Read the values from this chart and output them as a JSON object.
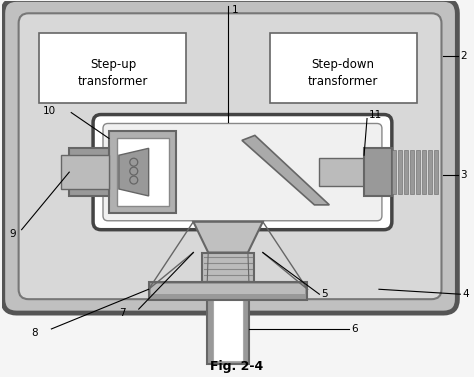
{
  "fig_bg": "#f5f5f5",
  "outer_face": "#c0c0c0",
  "outer_edge": "#555555",
  "inner_face": "#d8d8d8",
  "inner_edge": "#777777",
  "white": "#ffffff",
  "tube_face": "#ffffff",
  "tube_edge": "#444444",
  "gray_dark": "#666666",
  "gray_mid": "#999999",
  "gray_light": "#bbbbbb",
  "gray_cathode": "#b0b0b0",
  "gray_anode": "#aaaaaa",
  "gray_collim": "#c0c0c0",
  "black": "#000000",
  "fig_label": "Fig. 2-4",
  "stepup": "Step-up\ntransformer",
  "stepdown": "Step-down\ntransformer"
}
